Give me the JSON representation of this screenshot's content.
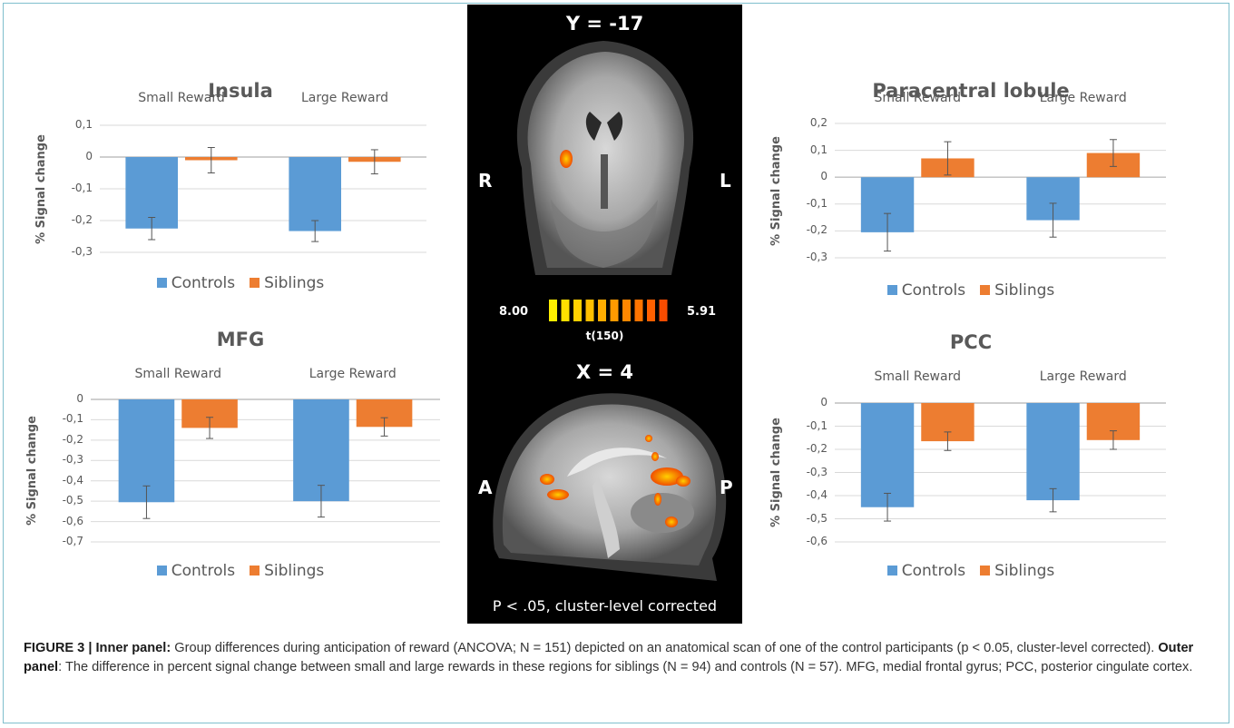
{
  "chart_data": [
    {
      "id": "insula",
      "type": "bar",
      "title": "Insula",
      "categories": [
        "Small Reward",
        "Large Reward"
      ],
      "series": [
        {
          "name": "Controls",
          "values": [
            -0.225,
            -0.233
          ],
          "errors": [
            0.035,
            0.033
          ],
          "color": "#5b9bd5"
        },
        {
          "name": "Siblings",
          "values": [
            -0.01,
            -0.015
          ],
          "errors": [
            0.04,
            0.038
          ],
          "color": "#ed7d31"
        }
      ],
      "ylabel": "% Signal change",
      "ylim": [
        -0.3,
        0.1
      ],
      "yticks": [
        0.1,
        0,
        -0.1,
        -0.2,
        -0.3
      ],
      "ytick_labels": [
        "0,1",
        "0",
        "-0,1",
        "-0,2",
        "-0,3"
      ],
      "legend": "bottom",
      "grid": true
    },
    {
      "id": "paracentral",
      "type": "bar",
      "title": "Paracentral lobule",
      "categories": [
        "Small Reward",
        "Large Reward"
      ],
      "series": [
        {
          "name": "Controls",
          "values": [
            -0.205,
            -0.16
          ],
          "errors": [
            0.07,
            0.063
          ],
          "color": "#5b9bd5"
        },
        {
          "name": "Siblings",
          "values": [
            0.07,
            0.09
          ],
          "errors": [
            0.062,
            0.05
          ],
          "color": "#ed7d31"
        }
      ],
      "ylabel": "% Signal change",
      "ylim": [
        -0.3,
        0.2
      ],
      "yticks": [
        0.2,
        0.1,
        0,
        -0.1,
        -0.2,
        -0.3
      ],
      "ytick_labels": [
        "0,2",
        "0,1",
        "0",
        "-0,1",
        "-0,2",
        "-0,3"
      ],
      "legend": "bottom",
      "grid": true
    },
    {
      "id": "mfg",
      "type": "bar",
      "title": "MFG",
      "categories": [
        "Small Reward",
        "Large Reward"
      ],
      "series": [
        {
          "name": "Controls",
          "values": [
            -0.505,
            -0.5
          ],
          "errors": [
            0.08,
            0.078
          ],
          "color": "#5b9bd5"
        },
        {
          "name": "Siblings",
          "values": [
            -0.14,
            -0.135
          ],
          "errors": [
            0.052,
            0.045
          ],
          "color": "#ed7d31"
        }
      ],
      "ylabel": "% Signal change",
      "ylim": [
        -0.7,
        0
      ],
      "yticks": [
        0,
        -0.1,
        -0.2,
        -0.3,
        -0.4,
        -0.5,
        -0.6,
        -0.7
      ],
      "ytick_labels": [
        "0",
        "-0,1",
        "-0,2",
        "-0,3",
        "-0,4",
        "-0,5",
        "-0,6",
        "-0,7"
      ],
      "legend": "bottom",
      "grid": true
    },
    {
      "id": "pcc",
      "type": "bar",
      "title": "PCC",
      "categories": [
        "Small Reward",
        "Large Reward"
      ],
      "series": [
        {
          "name": "Controls",
          "values": [
            -0.45,
            -0.42
          ],
          "errors": [
            0.06,
            0.05
          ],
          "color": "#5b9bd5"
        },
        {
          "name": "Siblings",
          "values": [
            -0.165,
            -0.16
          ],
          "errors": [
            0.04,
            0.04
          ],
          "color": "#ed7d31"
        }
      ],
      "ylabel": "% Signal change",
      "ylim": [
        -0.6,
        0
      ],
      "yticks": [
        0,
        -0.1,
        -0.2,
        -0.3,
        -0.4,
        -0.5,
        -0.6
      ],
      "ytick_labels": [
        "0",
        "-0,1",
        "-0,2",
        "-0,3",
        "-0,4",
        "-0,5",
        "-0,6"
      ],
      "legend": "bottom",
      "grid": true
    }
  ],
  "brain_panel": {
    "coronal_label": "Y = -17",
    "sagittal_label": "X = 4",
    "right_label": "R",
    "left_label": "L",
    "anterior_label": "A",
    "posterior_label": "P",
    "colorbar_max": "8.00",
    "colorbar_min": "5.91",
    "colorbar_label": "t(150)",
    "colorbar_colors": [
      "#ffee00",
      "#ffe000",
      "#ffd000",
      "#ffbf00",
      "#ffad00",
      "#ff9a00",
      "#ff8700",
      "#ff7400",
      "#ff6000",
      "#f84c00"
    ],
    "threshold_note": "P < .05, cluster-level corrected"
  },
  "caption": {
    "figure_label": "FIGURE 3 | Inner panel:",
    "inner_text": " Group differences during anticipation of reward (ANCOVA; N = 151) depicted on an anatomical scan of one of the control participants (p < 0.05, cluster-level corrected). ",
    "outer_label": "Outer panel",
    "outer_text": ": The difference in percent signal change between small and large rewards in these regions for siblings (N = 94) and controls (N = 57). MFG, medial frontal gyrus; PCC, posterior cingulate cortex."
  }
}
